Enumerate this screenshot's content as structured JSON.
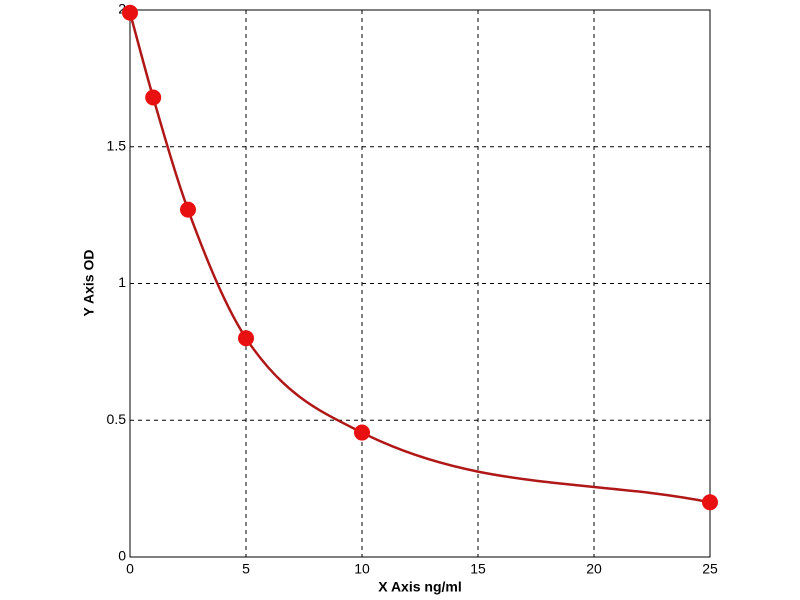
{
  "chart_data": {
    "type": "scatter",
    "x_label": "X Axis ng/ml",
    "y_label": "Y Axis OD",
    "x": [
      0,
      1,
      2.5,
      5,
      10,
      25
    ],
    "values": [
      1.99,
      1.68,
      1.27,
      0.8,
      0.455,
      0.2
    ],
    "color": "#e81010",
    "line_color": "#b01818",
    "fit_line": true,
    "xlim": [
      0,
      25
    ],
    "xticks": [
      0,
      5,
      10,
      15,
      20,
      25
    ],
    "ylim": [
      0,
      2
    ],
    "yticks": [
      0,
      0.5,
      1,
      1.5,
      2
    ],
    "grid": true
  }
}
